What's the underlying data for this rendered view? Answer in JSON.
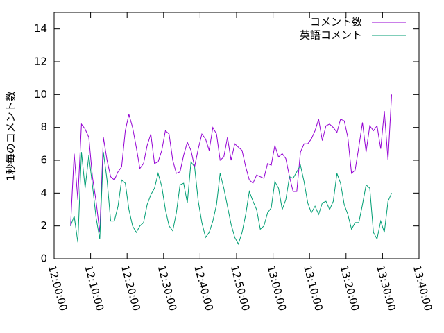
{
  "chart_data": {
    "type": "line",
    "ylabel": "1秒毎のコメント数",
    "x": [
      "12:04:30",
      "12:05:30",
      "12:06:30",
      "12:07:30",
      "12:08:30",
      "12:09:30",
      "12:10:30",
      "12:11:30",
      "12:12:30",
      "12:13:30",
      "12:14:30",
      "12:15:30",
      "12:16:30",
      "12:17:30",
      "12:18:30",
      "12:19:30",
      "12:20:30",
      "12:21:30",
      "12:22:30",
      "12:23:30",
      "12:24:30",
      "12:25:30",
      "12:26:30",
      "12:27:30",
      "12:28:30",
      "12:29:30",
      "12:30:30",
      "12:31:30",
      "12:32:30",
      "12:33:30",
      "12:34:30",
      "12:35:30",
      "12:36:30",
      "12:37:30",
      "12:38:30",
      "12:39:30",
      "12:40:30",
      "12:41:30",
      "12:42:30",
      "12:43:30",
      "12:44:30",
      "12:45:30",
      "12:46:30",
      "12:47:30",
      "12:48:30",
      "12:49:30",
      "12:50:30",
      "12:51:30",
      "12:52:30",
      "12:53:30",
      "12:54:30",
      "12:55:30",
      "12:56:30",
      "12:57:30",
      "12:58:30",
      "12:59:30",
      "13:00:30",
      "13:01:30",
      "13:02:30",
      "13:03:30",
      "13:04:30",
      "13:05:30",
      "13:06:30",
      "13:07:30",
      "13:08:30",
      "13:09:30",
      "13:10:30",
      "13:11:30",
      "13:12:30",
      "13:13:30",
      "13:14:30",
      "13:15:30",
      "13:16:30",
      "13:17:30",
      "13:18:30",
      "13:19:30",
      "13:20:30",
      "13:21:30",
      "13:22:30",
      "13:23:30",
      "13:24:30",
      "13:25:30",
      "13:26:30",
      "13:27:30",
      "13:28:30",
      "13:29:30",
      "13:30:30",
      "13:31:30",
      "13:32:30"
    ],
    "series": [
      {
        "name": "コメント数",
        "color": "#9400d3",
        "values": [
          2,
          6.4,
          3.6,
          8.2,
          7.9,
          7.4,
          5,
          3.5,
          1.6,
          7.4,
          6,
          5,
          4.8,
          5.3,
          5.6,
          7.8,
          8.8,
          8,
          6.8,
          5.5,
          5.8,
          6.9,
          7.6,
          5.8,
          5.9,
          6.6,
          7.8,
          7.6,
          6,
          5.2,
          5.3,
          6.3,
          7.1,
          6.6,
          5.6,
          6.7,
          7.6,
          7.3,
          6.6,
          8.0,
          7.6,
          6,
          6.2,
          7.4,
          6,
          7,
          6.8,
          6.6,
          5.6,
          4.8,
          4.6,
          5.1,
          5,
          4.9,
          5.8,
          5.7,
          6.9,
          6.2,
          6.4,
          6.1,
          5,
          4.1,
          4.1,
          6.5,
          7,
          7,
          7.3,
          7.8,
          8.5,
          7.2,
          8.1,
          8.2,
          8,
          7.7,
          8.5,
          8.4,
          7.4,
          5.2,
          5.4,
          6.8,
          8.3,
          6.5,
          8.1,
          7.8,
          8.1,
          6.7,
          9,
          6,
          10
        ]
      },
      {
        "name": "英語コメント",
        "color": "#009e73",
        "values": [
          2,
          2.6,
          1,
          6.5,
          4.3,
          6.3,
          4.5,
          2.5,
          1.2,
          6.5,
          4.8,
          2.3,
          2.3,
          3.2,
          4.8,
          4.6,
          3,
          2,
          1.6,
          2,
          2.2,
          3.3,
          3.9,
          4.3,
          5.2,
          4.4,
          3,
          2,
          1.7,
          2.8,
          4.5,
          4.6,
          3.4,
          5.9,
          5.6,
          3.5,
          2.2,
          1.3,
          1.6,
          2.3,
          3.3,
          5.2,
          4.3,
          3.2,
          2.1,
          1.3,
          0.9,
          1.6,
          2.7,
          4.1,
          3.5,
          3,
          1.8,
          2,
          2.8,
          3.1,
          4.7,
          4.3,
          3,
          3.6,
          5,
          4.9,
          5.3,
          5.7,
          4.7,
          3.4,
          2.8,
          3.2,
          2.7,
          3.4,
          3.5,
          3,
          3.5,
          5.2,
          4.6,
          3.3,
          2.7,
          1.8,
          2.2,
          2.2,
          3.3,
          4.5,
          4.3,
          1.6,
          1.2,
          2.3,
          1.6,
          3.5,
          4
        ]
      }
    ],
    "xlim": [
      "12:00:00",
      "13:40:00"
    ],
    "xticks": [
      "12:00:00",
      "12:10:00",
      "12:20:00",
      "12:30:00",
      "12:40:00",
      "12:50:00",
      "13:00:00",
      "13:10:00",
      "13:20:00",
      "13:30:00",
      "13:40:00"
    ],
    "ylim": [
      0,
      15
    ],
    "yticks": [
      0,
      2,
      4,
      6,
      8,
      10,
      12,
      14
    ],
    "legend": "top-right"
  }
}
